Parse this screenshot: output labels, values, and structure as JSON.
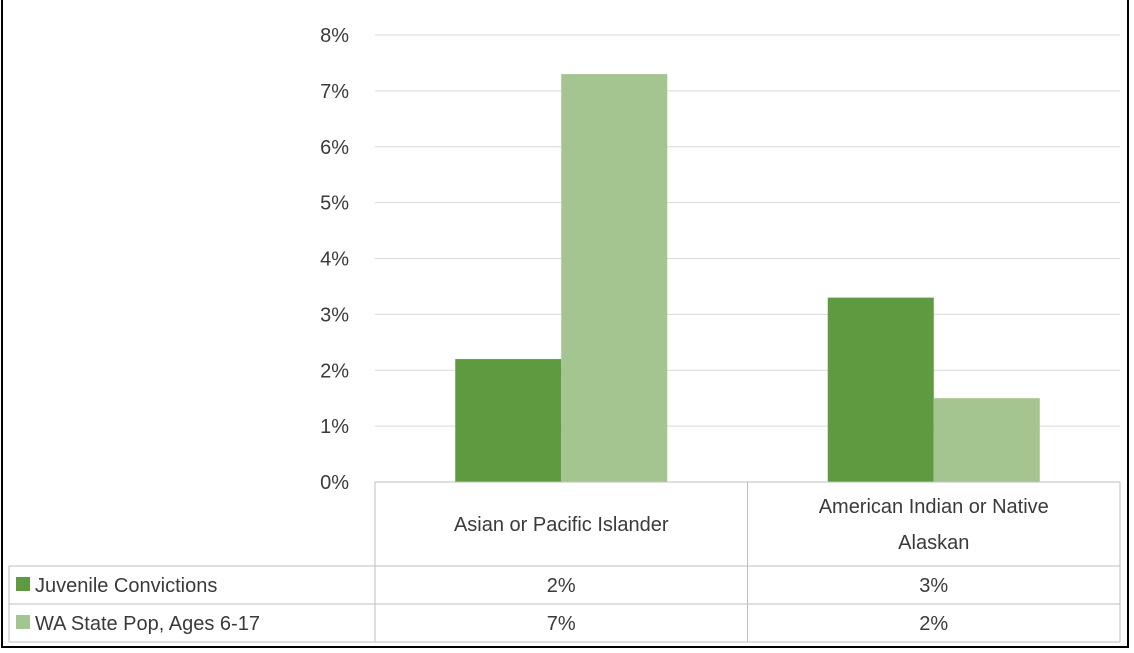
{
  "chart_data": {
    "type": "bar",
    "categories": [
      "Asian or Pacific Islander",
      "American Indian or Native Alaskan"
    ],
    "series": [
      {
        "name": "Juvenile Convictions",
        "values": [
          2.2,
          3.3
        ],
        "color": "#5e9a3f"
      },
      {
        "name": "WA State Pop, Ages 6-17",
        "values": [
          7.3,
          1.5
        ],
        "color": "#a4c490"
      }
    ],
    "yticks": [
      "0%",
      "1%",
      "2%",
      "3%",
      "4%",
      "5%",
      "6%",
      "7%",
      "8%"
    ],
    "ylim": [
      0,
      8
    ],
    "grid": true,
    "legend": "data table",
    "table_rows": [
      {
        "label": "Juvenile Convictions",
        "cells": [
          "2%",
          "3%"
        ]
      },
      {
        "label": "WA State Pop, Ages 6-17",
        "cells": [
          "7%",
          "2%"
        ]
      }
    ]
  }
}
